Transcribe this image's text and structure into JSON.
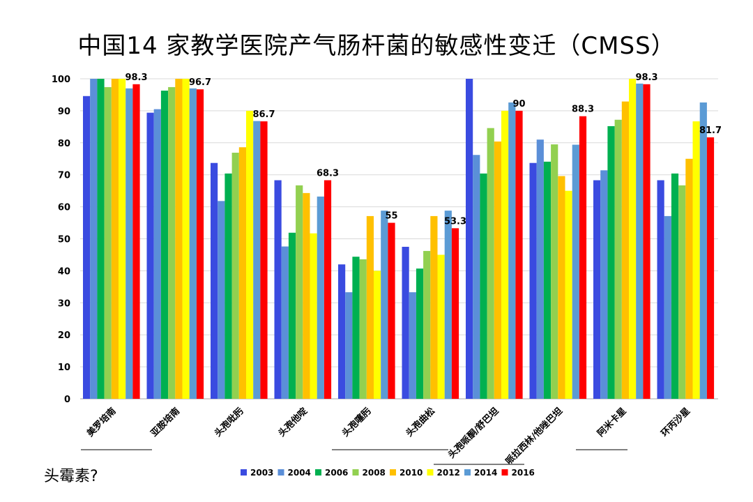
{
  "chart_data": {
    "type": "bar",
    "title": "中国14 家教学医院产气肠杆菌的敏感性变迁（CMSS）",
    "categories": [
      "美罗培南",
      "亚胺培南",
      "头孢吡肟",
      "头孢他啶",
      "头孢噻肟",
      "头孢曲松",
      "头孢哌酮/舒巴坦",
      "哌拉西林/他唑巴坦",
      "阿米卡星",
      "环丙沙星"
    ],
    "series": [
      {
        "name": "2003",
        "color": "#3a4be0",
        "values": [
          94.6,
          89.4,
          73.7,
          68.3,
          42.0,
          47.5,
          100,
          73.7,
          68.3,
          68.3
        ]
      },
      {
        "name": "2004",
        "color": "#5b8fd8",
        "values": [
          100,
          90.5,
          61.8,
          47.6,
          33.3,
          33.3,
          76.2,
          81.0,
          71.4,
          57.1
        ]
      },
      {
        "name": "2006",
        "color": "#00b050",
        "values": [
          100,
          96.3,
          70.4,
          51.9,
          44.4,
          40.7,
          70.4,
          74.1,
          85.2,
          70.4
        ]
      },
      {
        "name": "2008",
        "color": "#92d050",
        "values": [
          97.4,
          97.4,
          76.9,
          66.7,
          43.6,
          46.2,
          84.6,
          79.5,
          87.2,
          66.7
        ]
      },
      {
        "name": "2010",
        "color": "#ffc000",
        "values": [
          100,
          100,
          78.6,
          64.3,
          57.1,
          57.1,
          80.4,
          69.6,
          92.9,
          75.0
        ]
      },
      {
        "name": "2012",
        "color": "#ffff00",
        "values": [
          100,
          100,
          90.0,
          51.7,
          40.0,
          45.0,
          90.0,
          65.0,
          100,
          86.7
        ]
      },
      {
        "name": "2014",
        "color": "#5b9bd5",
        "values": [
          97.0,
          97.0,
          86.8,
          63.2,
          58.8,
          58.8,
          92.6,
          79.4,
          98.5,
          92.6
        ]
      },
      {
        "name": "2016",
        "color": "#ff0000",
        "values": [
          98.3,
          96.7,
          86.7,
          68.3,
          55.0,
          53.3,
          90.0,
          88.3,
          98.3,
          81.7
        ]
      }
    ],
    "data_labels": [
      "98.3",
      "96.7",
      "86.7",
      "68.3",
      "55",
      "53.3",
      "90",
      "88.3",
      "98.3",
      "81.7"
    ],
    "ylim": [
      0,
      100
    ],
    "yticks": [
      "0",
      "10",
      "20",
      "30",
      "40",
      "50",
      "60",
      "70",
      "80",
      "90",
      "100"
    ],
    "grid": true,
    "legend_position": "bottom"
  },
  "footnote": "头霉素?"
}
